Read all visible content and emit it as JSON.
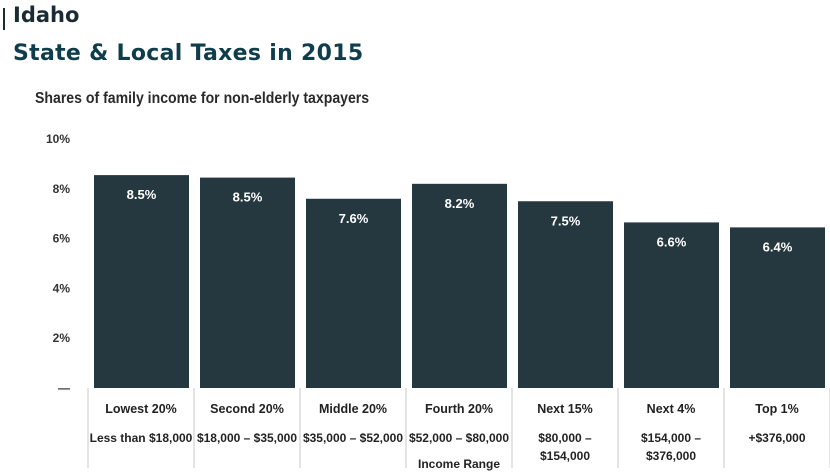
{
  "header": {
    "state": "Idaho",
    "title": "State & Local Taxes in 2015",
    "subtitle": "Shares of family income for non-elderly taxpayers"
  },
  "colors": {
    "bar": "#253840",
    "bar_label": "#ffffff",
    "title": "#0f3d4c",
    "divider": "#c9c9c9"
  },
  "chart_data": {
    "type": "bar",
    "title": "Shares of family income for non-elderly taxpayers",
    "xlabel": "Income Range",
    "ylabel": "",
    "ylim": [
      0,
      10
    ],
    "yticks": [
      {
        "value": 0,
        "label": "—"
      },
      {
        "value": 2,
        "label": "2%"
      },
      {
        "value": 4,
        "label": "4%"
      },
      {
        "value": 6,
        "label": "6%"
      },
      {
        "value": 8,
        "label": "8%"
      },
      {
        "value": 10,
        "label": "10%"
      }
    ],
    "grid": false,
    "categories": [
      "Lowest 20%",
      "Second 20%",
      "Middle 20%",
      "Fourth 20%",
      "Next 15%",
      "Next 4%",
      "Top 1%"
    ],
    "ranges": [
      [
        "Less than $18,000"
      ],
      [
        "$18,000 – $35,000"
      ],
      [
        "$35,000 – $52,000"
      ],
      [
        "$52,000 – $80,000"
      ],
      [
        "$80,000 –",
        "$154,000"
      ],
      [
        "$154,000 –",
        "$376,000"
      ],
      [
        "+$376,000"
      ]
    ],
    "values": [
      8.55,
      8.45,
      7.6,
      8.2,
      7.5,
      6.65,
      6.45
    ],
    "data_labels": [
      "8.5%",
      "8.5%",
      "7.6%",
      "8.2%",
      "7.5%",
      "6.6%",
      "6.4%"
    ]
  }
}
